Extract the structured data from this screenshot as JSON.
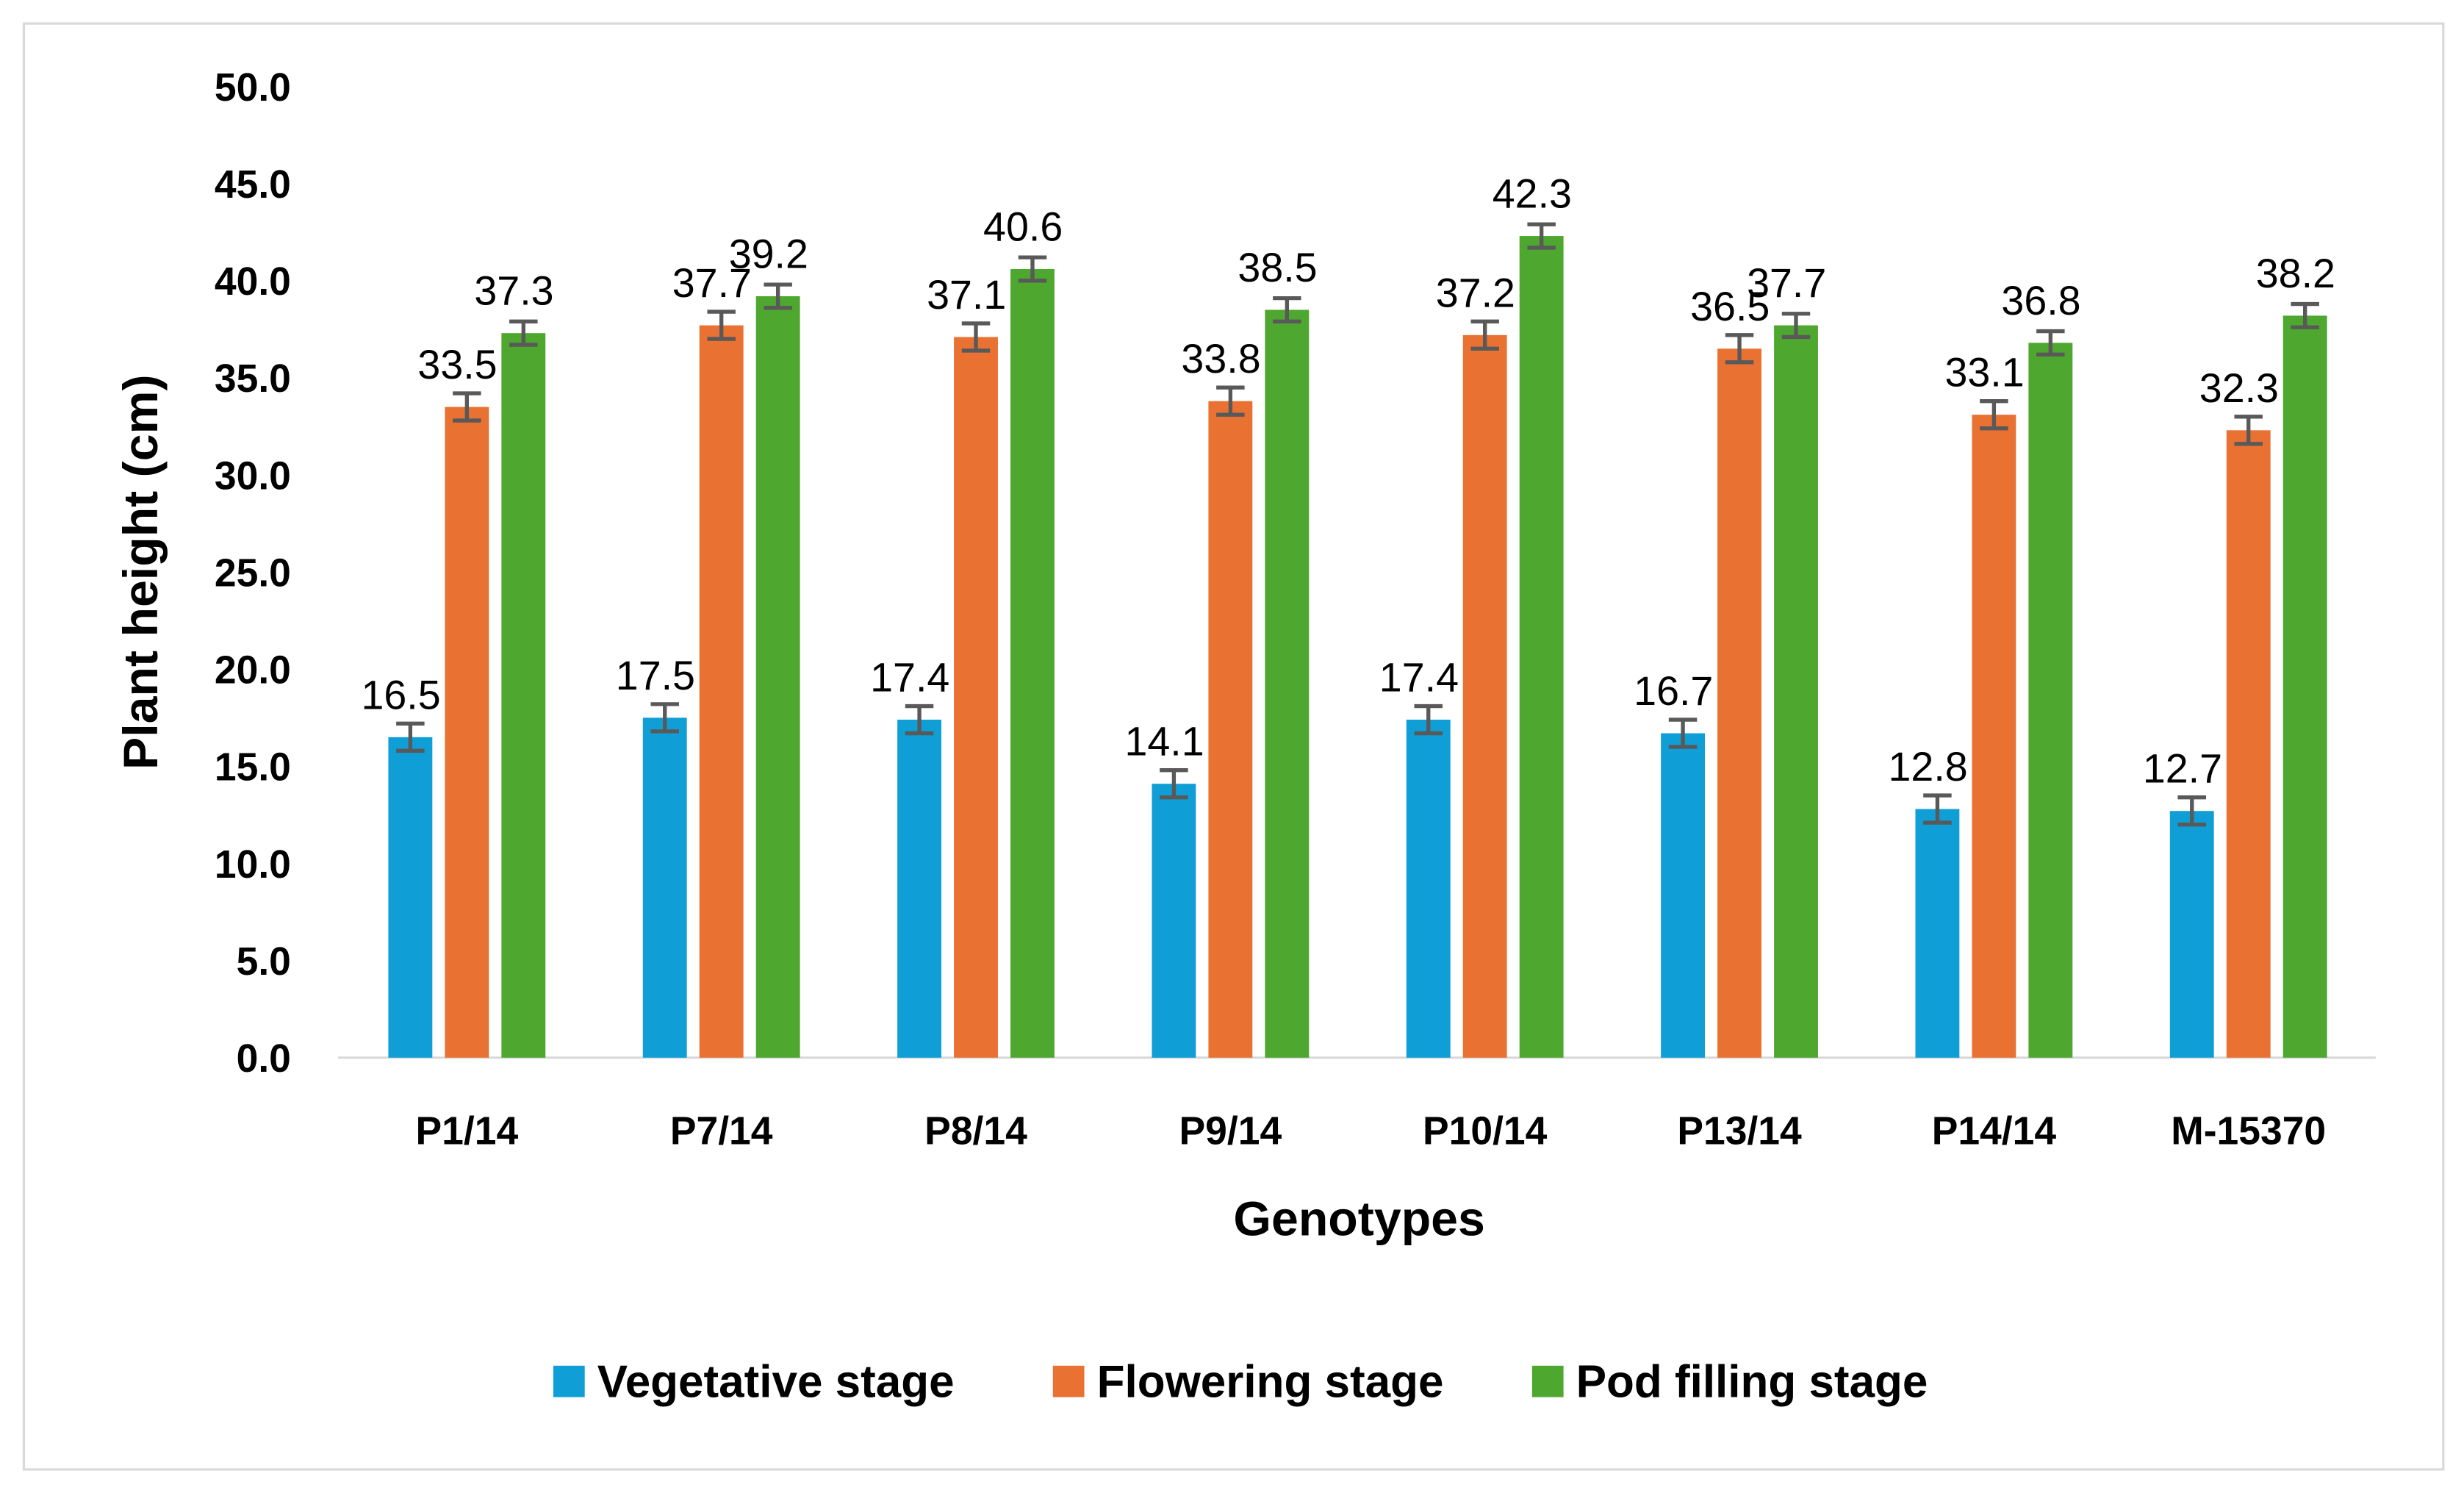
{
  "chart_data": {
    "type": "bar",
    "title": "",
    "xlabel": "Genotypes",
    "ylabel": "Plant height (cm)",
    "ylim": [
      0,
      50
    ],
    "yticks": [
      "0.0",
      "5.0",
      "10.0",
      "15.0",
      "20.0",
      "25.0",
      "30.0",
      "35.0",
      "40.0",
      "45.0",
      "50.0"
    ],
    "grid": false,
    "legend_position": "bottom",
    "categories": [
      "P1/14",
      "P7/14",
      "P8/14",
      "P9/14",
      "P10/14",
      "P13/14",
      "P14/14",
      "M-15370"
    ],
    "series": [
      {
        "name": "Vegetative stage",
        "color": "#0F9ED5",
        "values": [
          16.5,
          17.5,
          17.4,
          14.1,
          17.4,
          16.7,
          12.8,
          12.7
        ],
        "labels": [
          "16.5",
          "17.5",
          "17.4",
          "14.1",
          "17.4",
          "16.7",
          "12.8",
          "12.7"
        ],
        "error": 0.7
      },
      {
        "name": "Flowering stage",
        "color": "#E97132",
        "values": [
          33.5,
          37.7,
          37.1,
          33.8,
          37.2,
          36.5,
          33.1,
          32.3
        ],
        "labels": [
          "33.5",
          "37.7",
          "37.1",
          "33.8",
          "37.2",
          "36.5",
          "33.1",
          "32.3"
        ],
        "error": 0.7
      },
      {
        "name": "Pod filling stage",
        "color": "#4EA72E",
        "values": [
          37.3,
          39.2,
          40.6,
          38.5,
          42.3,
          37.7,
          36.8,
          38.2
        ],
        "labels": [
          "37.3",
          "39.2",
          "40.6",
          "38.5",
          "42.3",
          "37.7",
          "36.8",
          "38.2"
        ],
        "error": 0.6
      }
    ]
  }
}
